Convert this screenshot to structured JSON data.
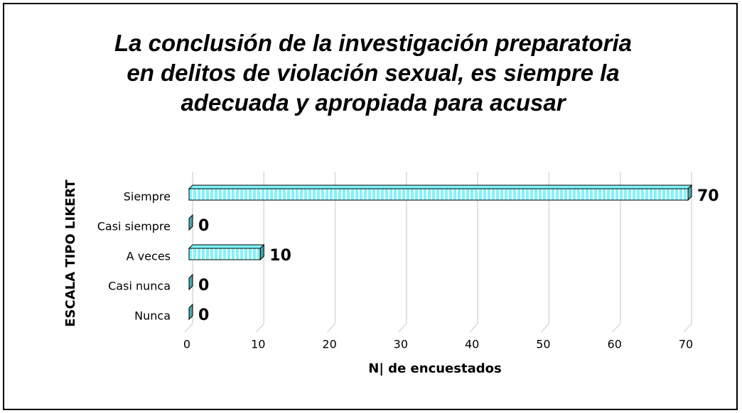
{
  "chart_data": {
    "type": "bar3d_horizontal",
    "title": "La conclusión de la investigación preparatoria en delitos de violación sexual, es siempre la adecuada y apropiada para acusar",
    "categories": [
      "Siempre",
      "Casi siempre",
      "A veces",
      "Casi nunca",
      "Nunca"
    ],
    "values": [
      70,
      0,
      10,
      0,
      0
    ],
    "color": "#7ff5fa",
    "xlim": [
      0,
      70
    ],
    "xticks": [
      0,
      10,
      20,
      30,
      40,
      50,
      60,
      70
    ],
    "x_label": "N| de encuestados",
    "y_label": "ESCALA TIPO LIKERT",
    "grid": true
  }
}
